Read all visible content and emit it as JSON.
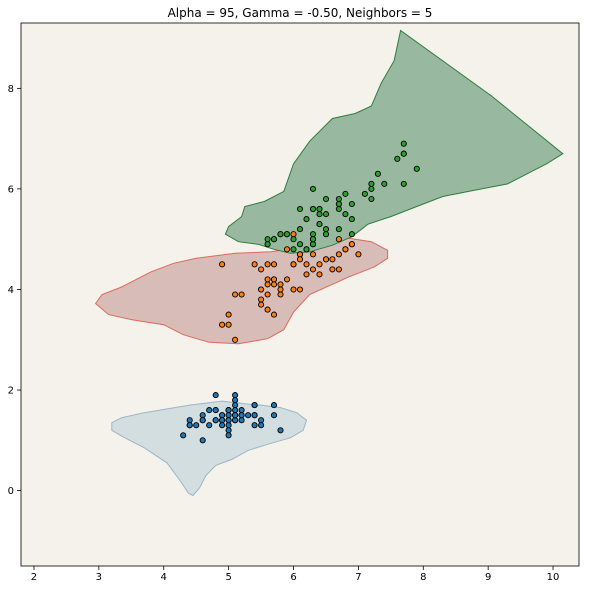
{
  "chart_data": {
    "type": "scatter",
    "title": "Alpha = 95, Gamma = -0.50, Neighbors = 5",
    "xlabel": "",
    "ylabel": "",
    "xlim": [
      1.8,
      10.4
    ],
    "ylim": [
      -1.5,
      9.3
    ],
    "x_ticks": [
      2,
      3,
      4,
      5,
      6,
      7,
      8,
      9,
      10
    ],
    "y_ticks": [
      0,
      2,
      4,
      6,
      8
    ],
    "grid": false,
    "legend": "none",
    "background_color": "#f4f2ea",
    "regions": [
      {
        "fill": "#d2dee0",
        "edge": "#9cb6c6",
        "polygon": [
          [
            3.2,
            1.35
          ],
          [
            3.35,
            1.45
          ],
          [
            3.7,
            1.55
          ],
          [
            4.4,
            1.7
          ],
          [
            4.9,
            1.78
          ],
          [
            5.3,
            1.72
          ],
          [
            5.5,
            1.7
          ],
          [
            5.8,
            1.65
          ],
          [
            6.05,
            1.55
          ],
          [
            6.2,
            1.4
          ],
          [
            6.15,
            1.2
          ],
          [
            5.95,
            1.05
          ],
          [
            5.6,
            0.92
          ],
          [
            5.3,
            0.8
          ],
          [
            5.05,
            0.62
          ],
          [
            4.8,
            0.5
          ],
          [
            4.65,
            0.3
          ],
          [
            4.55,
            0.05
          ],
          [
            4.45,
            -0.1
          ],
          [
            4.38,
            -0.05
          ],
          [
            4.25,
            0.2
          ],
          [
            4.05,
            0.55
          ],
          [
            3.7,
            0.85
          ],
          [
            3.4,
            1.05
          ],
          [
            3.2,
            1.2
          ]
        ]
      },
      {
        "fill": "#d8bcb8",
        "edge": "#e0685a",
        "polygon": [
          [
            2.95,
            3.72
          ],
          [
            3.05,
            3.9
          ],
          [
            3.35,
            4.05
          ],
          [
            3.8,
            4.35
          ],
          [
            4.15,
            4.52
          ],
          [
            4.5,
            4.62
          ],
          [
            5.1,
            4.72
          ],
          [
            5.65,
            4.75
          ],
          [
            6.05,
            4.82
          ],
          [
            6.4,
            4.88
          ],
          [
            6.85,
            5.02
          ],
          [
            7.2,
            4.95
          ],
          [
            7.45,
            4.78
          ],
          [
            7.45,
            4.62
          ],
          [
            7.25,
            4.45
          ],
          [
            6.85,
            4.25
          ],
          [
            6.25,
            3.9
          ],
          [
            6.0,
            3.55
          ],
          [
            5.85,
            3.2
          ],
          [
            5.6,
            3.02
          ],
          [
            5.15,
            2.92
          ],
          [
            4.7,
            2.95
          ],
          [
            4.3,
            3.1
          ],
          [
            4.0,
            3.3
          ],
          [
            3.5,
            3.4
          ],
          [
            3.15,
            3.5
          ]
        ]
      },
      {
        "fill": "#98b8a0",
        "edge": "#2e7d3e",
        "polygon": [
          [
            4.95,
            5.1
          ],
          [
            5.0,
            5.25
          ],
          [
            5.2,
            5.45
          ],
          [
            5.25,
            5.65
          ],
          [
            5.55,
            5.75
          ],
          [
            5.85,
            5.95
          ],
          [
            6.0,
            6.5
          ],
          [
            6.25,
            6.95
          ],
          [
            6.6,
            7.4
          ],
          [
            6.95,
            7.5
          ],
          [
            7.2,
            7.65
          ],
          [
            7.35,
            8.1
          ],
          [
            7.55,
            8.55
          ],
          [
            7.65,
            9.15
          ],
          [
            9.05,
            7.85
          ],
          [
            10.15,
            6.7
          ],
          [
            9.9,
            6.5
          ],
          [
            9.6,
            6.3
          ],
          [
            9.3,
            6.1
          ],
          [
            8.7,
            5.95
          ],
          [
            8.3,
            5.85
          ],
          [
            7.9,
            5.65
          ],
          [
            7.5,
            5.45
          ],
          [
            7.15,
            5.3
          ],
          [
            6.9,
            5.05
          ],
          [
            6.6,
            4.88
          ],
          [
            6.25,
            4.75
          ],
          [
            5.95,
            4.72
          ],
          [
            5.7,
            4.8
          ],
          [
            5.45,
            4.9
          ],
          [
            5.15,
            4.95
          ]
        ]
      }
    ],
    "series": [
      {
        "color": "#1f77b4",
        "points": [
          [
            5.1,
            1.4
          ],
          [
            4.9,
            1.4
          ],
          [
            4.7,
            1.3
          ],
          [
            4.6,
            1.5
          ],
          [
            5.0,
            1.4
          ],
          [
            5.4,
            1.7
          ],
          [
            4.6,
            1.4
          ],
          [
            5.0,
            1.5
          ],
          [
            4.4,
            1.4
          ],
          [
            4.9,
            1.5
          ],
          [
            5.4,
            1.5
          ],
          [
            4.8,
            1.6
          ],
          [
            4.8,
            1.4
          ],
          [
            4.3,
            1.1
          ],
          [
            5.8,
            1.2
          ],
          [
            5.7,
            1.5
          ],
          [
            5.4,
            1.3
          ],
          [
            5.1,
            1.4
          ],
          [
            5.7,
            1.7
          ],
          [
            5.1,
            1.5
          ],
          [
            5.4,
            1.7
          ],
          [
            5.1,
            1.5
          ],
          [
            4.6,
            1.0
          ],
          [
            5.1,
            1.7
          ],
          [
            4.8,
            1.9
          ],
          [
            5.0,
            1.6
          ],
          [
            5.0,
            1.6
          ],
          [
            5.2,
            1.5
          ],
          [
            5.2,
            1.4
          ],
          [
            4.7,
            1.6
          ],
          [
            4.8,
            1.6
          ],
          [
            5.4,
            1.5
          ],
          [
            5.2,
            1.5
          ],
          [
            5.5,
            1.4
          ],
          [
            4.9,
            1.5
          ],
          [
            5.0,
            1.2
          ],
          [
            5.5,
            1.3
          ],
          [
            4.9,
            1.4
          ],
          [
            4.4,
            1.3
          ],
          [
            5.1,
            1.5
          ],
          [
            5.0,
            1.3
          ],
          [
            4.5,
            1.3
          ],
          [
            4.4,
            1.3
          ],
          [
            5.0,
            1.6
          ],
          [
            5.1,
            1.9
          ],
          [
            4.8,
            1.4
          ],
          [
            5.1,
            1.6
          ],
          [
            4.6,
            1.4
          ],
          [
            5.3,
            1.5
          ],
          [
            5.0,
            1.4
          ],
          [
            5.0,
            1.1
          ],
          [
            5.1,
            1.8
          ],
          [
            5.2,
            1.6
          ],
          [
            4.9,
            1.3
          ]
        ]
      },
      {
        "color": "#ff7f0e",
        "points": [
          [
            6.4,
            4.5
          ],
          [
            6.9,
            4.9
          ],
          [
            5.5,
            4.0
          ],
          [
            6.5,
            4.6
          ],
          [
            5.7,
            4.5
          ],
          [
            6.3,
            4.7
          ],
          [
            4.9,
            3.3
          ],
          [
            6.6,
            4.6
          ],
          [
            5.2,
            3.9
          ],
          [
            5.0,
            3.5
          ],
          [
            5.9,
            4.2
          ],
          [
            6.0,
            4.0
          ],
          [
            6.1,
            4.7
          ],
          [
            5.6,
            3.6
          ],
          [
            6.7,
            4.4
          ],
          [
            5.6,
            4.5
          ],
          [
            5.8,
            4.1
          ],
          [
            6.2,
            4.5
          ],
          [
            5.6,
            3.9
          ],
          [
            5.9,
            4.8
          ],
          [
            6.1,
            4.0
          ],
          [
            6.3,
            4.9
          ],
          [
            6.1,
            4.7
          ],
          [
            6.4,
            4.3
          ],
          [
            6.6,
            4.4
          ],
          [
            6.8,
            4.8
          ],
          [
            6.7,
            5.0
          ],
          [
            6.0,
            4.5
          ],
          [
            5.7,
            3.5
          ],
          [
            5.5,
            3.8
          ],
          [
            5.5,
            3.7
          ],
          [
            5.8,
            3.9
          ],
          [
            6.0,
            5.1
          ],
          [
            5.4,
            4.5
          ],
          [
            6.0,
            4.5
          ],
          [
            6.7,
            4.7
          ],
          [
            6.3,
            4.4
          ],
          [
            5.6,
            4.1
          ],
          [
            5.5,
            4.0
          ],
          [
            5.5,
            4.4
          ],
          [
            6.1,
            4.6
          ],
          [
            5.8,
            4.0
          ],
          [
            5.0,
            3.3
          ],
          [
            5.6,
            4.2
          ],
          [
            5.7,
            4.2
          ],
          [
            5.7,
            4.2
          ],
          [
            6.2,
            4.3
          ],
          [
            5.1,
            3.0
          ],
          [
            5.7,
            4.1
          ],
          [
            4.9,
            4.5
          ],
          [
            5.1,
            3.9
          ],
          [
            6.9,
            4.9
          ],
          [
            6.2,
            4.8
          ],
          [
            6.5,
            4.6
          ],
          [
            6.8,
            4.8
          ],
          [
            7.0,
            4.7
          ]
        ]
      },
      {
        "color": "#2ca02c",
        "points": [
          [
            6.3,
            6.0
          ],
          [
            5.8,
            5.1
          ],
          [
            7.1,
            5.9
          ],
          [
            6.3,
            5.6
          ],
          [
            6.5,
            5.8
          ],
          [
            7.6,
            6.6
          ],
          [
            7.3,
            6.3
          ],
          [
            6.7,
            5.8
          ],
          [
            7.2,
            6.1
          ],
          [
            6.4,
            5.3
          ],
          [
            6.8,
            5.5
          ],
          [
            5.7,
            5.0
          ],
          [
            5.8,
            5.1
          ],
          [
            6.4,
            5.3
          ],
          [
            6.5,
            5.5
          ],
          [
            7.7,
            6.7
          ],
          [
            7.7,
            6.9
          ],
          [
            6.0,
            5.0
          ],
          [
            6.9,
            5.7
          ],
          [
            5.6,
            4.9
          ],
          [
            7.7,
            6.7
          ],
          [
            6.3,
            4.9
          ],
          [
            6.7,
            5.7
          ],
          [
            7.2,
            6.0
          ],
          [
            6.2,
            4.8
          ],
          [
            6.1,
            4.9
          ],
          [
            6.4,
            5.6
          ],
          [
            7.2,
            5.8
          ],
          [
            7.4,
            6.1
          ],
          [
            7.9,
            6.4
          ],
          [
            6.4,
            5.6
          ],
          [
            6.3,
            5.1
          ],
          [
            6.1,
            5.6
          ],
          [
            7.7,
            6.1
          ],
          [
            6.3,
            5.6
          ],
          [
            6.4,
            5.5
          ],
          [
            6.0,
            4.8
          ],
          [
            6.9,
            5.4
          ],
          [
            6.7,
            5.6
          ],
          [
            6.9,
            5.1
          ],
          [
            6.8,
            5.9
          ],
          [
            6.7,
            5.7
          ],
          [
            6.7,
            5.2
          ],
          [
            6.3,
            5.0
          ],
          [
            6.5,
            5.2
          ],
          [
            6.2,
            5.4
          ],
          [
            5.9,
            5.1
          ],
          [
            6.5,
            5.1
          ],
          [
            6.3,
            5.0
          ],
          [
            5.7,
            5.0
          ],
          [
            5.6,
            5.0
          ],
          [
            5.9,
            5.1
          ],
          [
            6.1,
            5.2
          ]
        ]
      }
    ]
  }
}
